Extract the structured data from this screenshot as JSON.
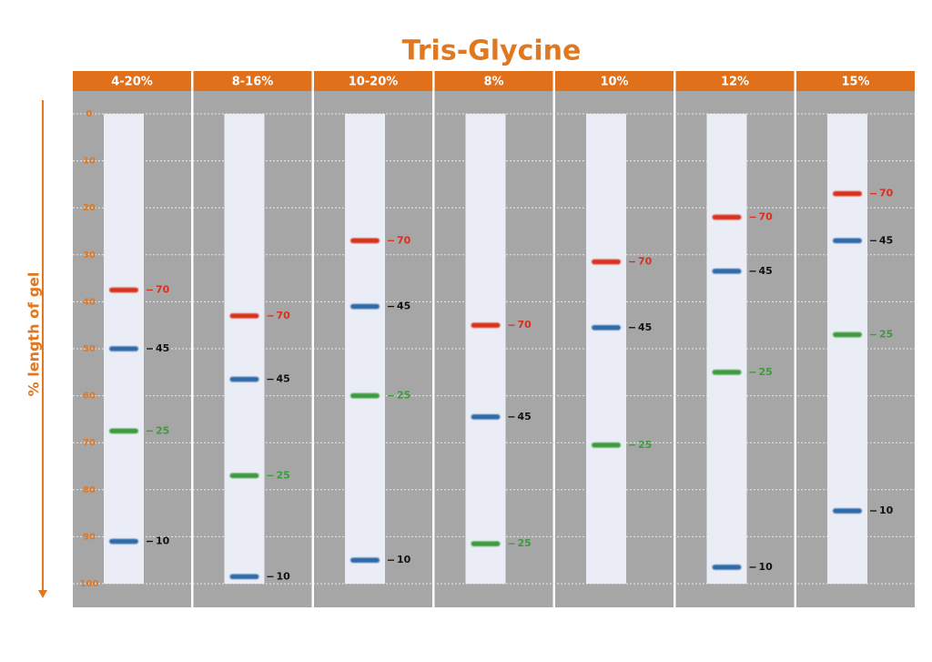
{
  "chart_data": {
    "type": "gel",
    "title": "Tris-Glycine",
    "y_label": "% length of gel",
    "categories": [
      "4-20%",
      "8-16%",
      "10-20%",
      "8%",
      "10%",
      "12%",
      "15%"
    ],
    "ylim": [
      0,
      100
    ],
    "yticks": [
      0,
      10,
      20,
      30,
      40,
      50,
      60,
      70,
      80,
      90,
      100
    ],
    "grid": true,
    "series": [
      {
        "name": "70",
        "color": "#d9301e",
        "label_color": "#d9301e",
        "values": [
          37.5,
          43,
          27,
          45,
          31.5,
          22,
          17
        ]
      },
      {
        "name": "45",
        "color": "#2e6aa8",
        "label_color": "#111111",
        "values": [
          50,
          56.5,
          41,
          64.5,
          45.5,
          33.5,
          27
        ]
      },
      {
        "name": "25",
        "color": "#3d9b3d",
        "label_color": "#3d9b3d",
        "values": [
          67.5,
          77,
          60,
          91.5,
          70.5,
          55,
          47
        ]
      },
      {
        "name": "10",
        "color": "#2e6aa8",
        "label_color": "#111111",
        "values": [
          91,
          98.5,
          95,
          null,
          null,
          96.5,
          84.5
        ]
      }
    ]
  }
}
